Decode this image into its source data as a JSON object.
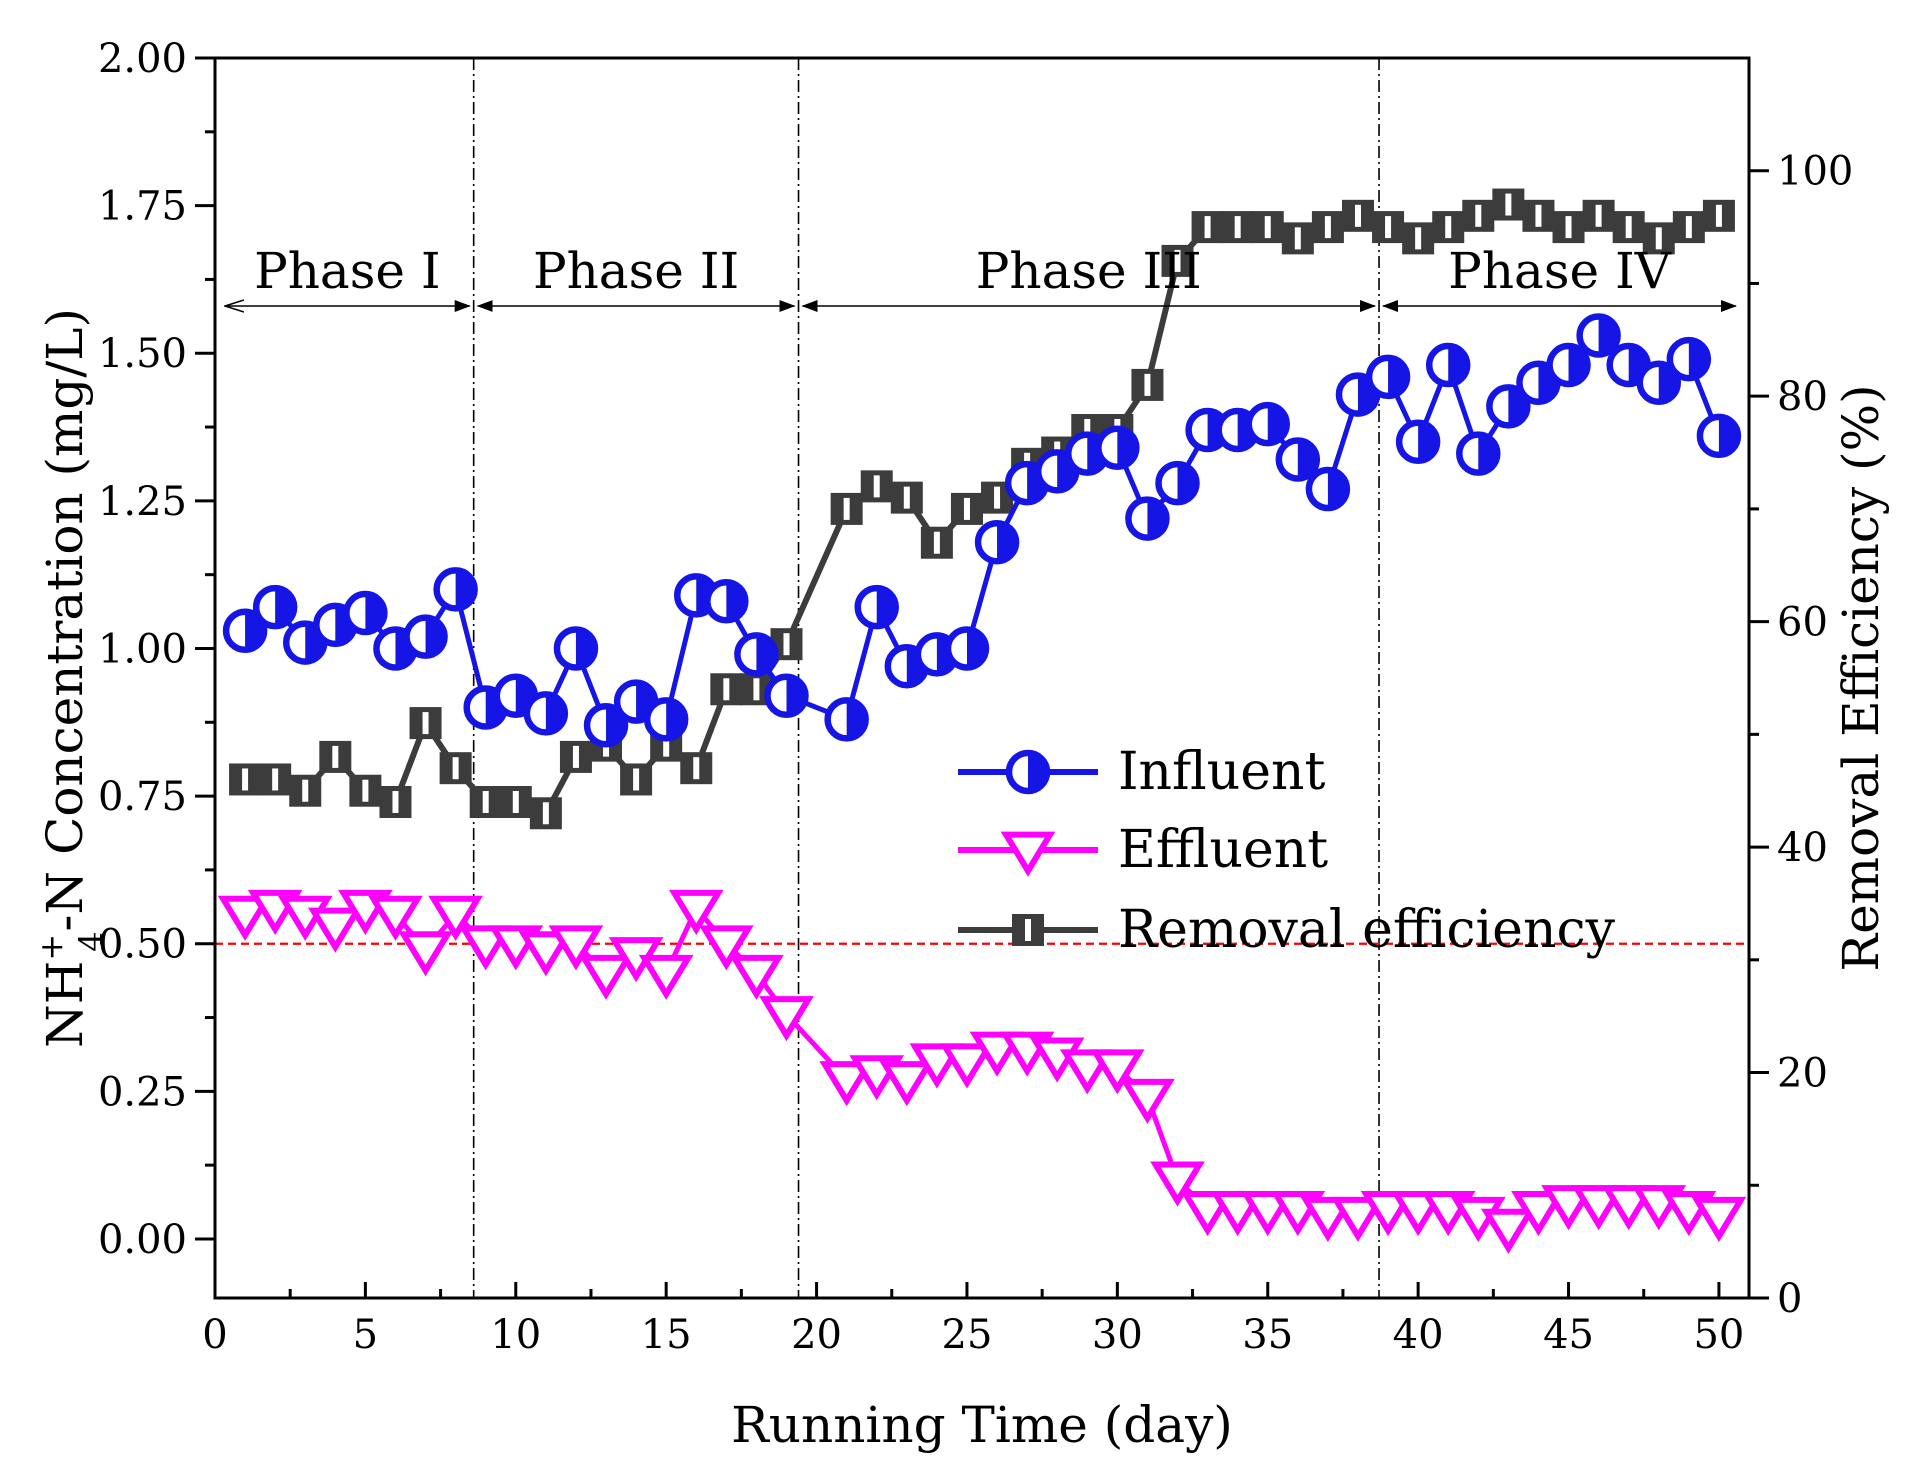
{
  "chart_data": {
    "type": "line",
    "x_label": "Running Time (day)",
    "y_left_label": "NH4+-N Concentration (mg/L)",
    "y_left_label_parts": {
      "base": "NH",
      "sup": "+",
      "sub": "4",
      "rest": "-N Concentration (mg/L)"
    },
    "y_right_label": "Removal  Efficiency (%)",
    "xlim": [
      0,
      51
    ],
    "ylim_left": [
      -0.1,
      2.0
    ],
    "ylim_right": [
      0,
      110
    ],
    "x_ticks": [
      0,
      5,
      10,
      15,
      20,
      25,
      30,
      35,
      40,
      45,
      50
    ],
    "x_tick_labels": [
      "0",
      "5",
      "10",
      "15",
      "20",
      "25",
      "30",
      "35",
      "40",
      "45",
      "50"
    ],
    "y_left_ticks": [
      0.0,
      0.25,
      0.5,
      0.75,
      1.0,
      1.25,
      1.5,
      1.75,
      2.0
    ],
    "y_left_tick_labels": [
      "0.00",
      "0.25",
      "0.50",
      "0.75",
      "1.00",
      "1.25",
      "1.50",
      "1.75",
      "2.00"
    ],
    "y_right_ticks": [
      0,
      20,
      40,
      60,
      80,
      100
    ],
    "y_right_tick_labels": [
      "0",
      "20",
      "40",
      "60",
      "80",
      "100"
    ],
    "threshold_line": {
      "y": 0.5,
      "color": "#ff0000"
    },
    "phase_boundaries": [
      8.6,
      19.4,
      38.7
    ],
    "phases": [
      {
        "label": "Phase I",
        "start": 0.2,
        "end": 8.6
      },
      {
        "label": "Phase II",
        "start": 8.6,
        "end": 19.4
      },
      {
        "label": "Phase III",
        "start": 19.4,
        "end": 38.7
      },
      {
        "label": "Phase IV",
        "start": 38.7,
        "end": 50.7
      }
    ],
    "series": [
      {
        "name": "Influent",
        "axis": "left",
        "color": "#1515e6",
        "marker": "half-circle",
        "x": [
          1,
          2,
          3,
          4,
          5,
          6,
          7,
          8,
          9,
          10,
          11,
          12,
          13,
          14,
          15,
          16,
          17,
          18,
          19,
          21,
          22,
          23,
          24,
          25,
          26,
          27,
          28,
          29,
          30,
          31,
          32,
          33,
          34,
          35,
          36,
          37,
          38,
          39,
          40,
          41,
          42,
          43,
          44,
          45,
          46,
          47,
          48,
          49,
          50
        ],
        "values": [
          1.03,
          1.07,
          1.01,
          1.04,
          1.06,
          1.0,
          1.02,
          1.1,
          0.9,
          0.92,
          0.89,
          1.0,
          0.87,
          0.91,
          0.88,
          1.09,
          1.08,
          0.99,
          0.92,
          0.88,
          1.07,
          0.97,
          0.99,
          1.0,
          1.18,
          1.28,
          1.3,
          1.33,
          1.34,
          1.22,
          1.28,
          1.37,
          1.37,
          1.38,
          1.32,
          1.27,
          1.43,
          1.46,
          1.35,
          1.48,
          1.33,
          1.41,
          1.45,
          1.48,
          1.53,
          1.48,
          1.45,
          1.49,
          1.36
        ]
      },
      {
        "name": "Effluent",
        "axis": "left",
        "color": "#ff00ff",
        "marker": "down-triangle",
        "x": [
          1,
          2,
          3,
          4,
          5,
          6,
          7,
          8,
          9,
          10,
          11,
          12,
          13,
          14,
          15,
          16,
          17,
          18,
          19,
          21,
          22,
          23,
          24,
          25,
          26,
          27,
          28,
          29,
          30,
          31,
          32,
          33,
          34,
          35,
          36,
          37,
          38,
          39,
          40,
          41,
          42,
          43,
          44,
          45,
          46,
          47,
          48,
          49,
          50
        ],
        "values": [
          0.55,
          0.56,
          0.55,
          0.53,
          0.56,
          0.55,
          0.49,
          0.55,
          0.5,
          0.5,
          0.49,
          0.5,
          0.45,
          0.48,
          0.45,
          0.56,
          0.5,
          0.45,
          0.38,
          0.27,
          0.28,
          0.27,
          0.3,
          0.3,
          0.32,
          0.32,
          0.31,
          0.29,
          0.29,
          0.24,
          0.1,
          0.05,
          0.05,
          0.05,
          0.05,
          0.04,
          0.04,
          0.05,
          0.05,
          0.05,
          0.04,
          0.02,
          0.05,
          0.06,
          0.06,
          0.06,
          0.06,
          0.05,
          0.04
        ]
      },
      {
        "name": "Removal efficiency",
        "axis": "right",
        "color": "#3c3c3c",
        "marker": "half-square",
        "x": [
          1,
          2,
          3,
          4,
          5,
          6,
          7,
          8,
          9,
          10,
          11,
          12,
          13,
          14,
          15,
          16,
          17,
          18,
          19,
          21,
          22,
          23,
          24,
          25,
          26,
          27,
          28,
          29,
          30,
          31,
          32,
          33,
          34,
          35,
          36,
          37,
          38,
          39,
          40,
          41,
          42,
          43,
          44,
          45,
          46,
          47,
          48,
          49,
          50
        ],
        "values": [
          46,
          46,
          45,
          48,
          45,
          44,
          51,
          47,
          44,
          44,
          43,
          48,
          49,
          46,
          49,
          47,
          54,
          54,
          58,
          70,
          72,
          71,
          67,
          70,
          71,
          74,
          75,
          77,
          77,
          81,
          92,
          95,
          95,
          95,
          94,
          95,
          96,
          95,
          94,
          95,
          96,
          97,
          96,
          95,
          96,
          95,
          94,
          95,
          96
        ]
      }
    ],
    "legend": {
      "position": "center-right",
      "entries": [
        "Influent",
        "Effluent",
        "Removal efficiency"
      ]
    }
  }
}
